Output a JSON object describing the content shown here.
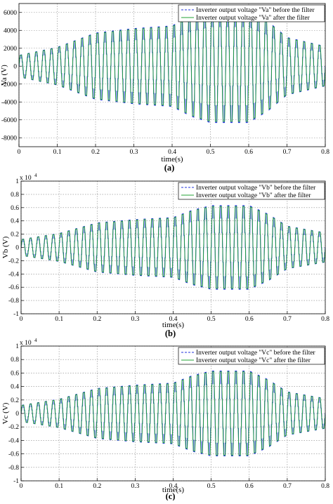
{
  "chart_data": [
    {
      "panel_label": "(a)",
      "type": "line",
      "ylabel": "Va (V)",
      "xlabel": "time(s)",
      "exponent_label": "",
      "xlim": [
        0,
        0.8
      ],
      "ylim": [
        -9000,
        7000
      ],
      "xticks": [
        0,
        0.1,
        0.2,
        0.3,
        0.4,
        0.5,
        0.6,
        0.7,
        0.8
      ],
      "xtick_labels": [
        "0",
        "0.1",
        "0.2",
        "0.3",
        "0.4",
        "0.5",
        "0.6",
        "0.7",
        "0.8"
      ],
      "yticks": [
        -8000,
        -6000,
        -4000,
        -2000,
        0,
        2000,
        4000,
        6000
      ],
      "ytick_labels": [
        "-8000",
        "-6000",
        "-4000",
        "-2000",
        "0",
        "2000",
        "4000",
        "6000"
      ],
      "grid": true,
      "legend_position": "top-right",
      "waveform": {
        "frequency_hz": 50,
        "envelope_t": [
          0,
          0.1,
          0.2,
          0.3,
          0.4,
          0.45,
          0.5,
          0.55,
          0.6,
          0.65,
          0.7,
          0.8
        ],
        "envelope_amplitude": [
          1200,
          2100,
          3700,
          4200,
          4500,
          5600,
          6300,
          6300,
          6300,
          5000,
          3200,
          2200
        ]
      },
      "series": [
        {
          "name": "Inverter output voltage \"Va\" before the filter",
          "color": "#2233dd",
          "style": "dashed"
        },
        {
          "name": "Inverter output voltage \"Va\" after the filter",
          "color": "#23a335",
          "style": "solid"
        }
      ]
    },
    {
      "panel_label": "(b)",
      "type": "line",
      "ylabel": "Vb (V)",
      "xlabel": "time(s)",
      "exponent_label": "x 10",
      "exponent_power": "4",
      "xlim": [
        0,
        0.8
      ],
      "ylim": [
        -1,
        1
      ],
      "xticks": [
        0,
        0.1,
        0.2,
        0.3,
        0.4,
        0.5,
        0.6,
        0.7,
        0.8
      ],
      "xtick_labels": [
        "0",
        "0.1",
        "0.2",
        "0.3",
        "0.4",
        "0.5",
        "0.6",
        "0.7",
        "0.8"
      ],
      "yticks": [
        -1,
        -0.8,
        -0.6,
        -0.4,
        -0.2,
        0,
        0.2,
        0.4,
        0.6,
        0.8,
        1
      ],
      "ytick_labels": [
        "-1",
        "-0.8",
        "-0.6",
        "-0.4",
        "-0.2",
        "0",
        "0.2",
        "0.4",
        "0.6",
        "0.8",
        "1"
      ],
      "grid": true,
      "legend_position": "top-right",
      "waveform": {
        "frequency_hz": 50,
        "envelope_t": [
          0,
          0.1,
          0.2,
          0.3,
          0.4,
          0.45,
          0.5,
          0.55,
          0.6,
          0.65,
          0.7,
          0.8
        ],
        "envelope_amplitude": [
          0.12,
          0.21,
          0.37,
          0.42,
          0.45,
          0.56,
          0.63,
          0.63,
          0.63,
          0.5,
          0.32,
          0.22
        ]
      },
      "series": [
        {
          "name": "Inverter output voltage \"Vb\" before the filter",
          "color": "#2233dd",
          "style": "dashed"
        },
        {
          "name": "Inverter output voltage \"Vb\" after the filter",
          "color": "#23a335",
          "style": "solid"
        }
      ]
    },
    {
      "panel_label": "(c)",
      "type": "line",
      "ylabel": "Vc (V)",
      "xlabel": "time(s)",
      "exponent_label": "x 10",
      "exponent_power": "4",
      "xlim": [
        0,
        0.8
      ],
      "ylim": [
        -1,
        1
      ],
      "xticks": [
        0,
        0.1,
        0.2,
        0.3,
        0.4,
        0.5,
        0.6,
        0.7,
        0.8
      ],
      "xtick_labels": [
        "0",
        "0.1",
        "0.2",
        "0.3",
        "0.4",
        "0.5",
        "0.6",
        "0.7",
        "0.8"
      ],
      "yticks": [
        -1,
        -0.8,
        -0.6,
        -0.4,
        -0.2,
        0,
        0.2,
        0.4,
        0.6,
        0.8,
        1
      ],
      "ytick_labels": [
        "-1",
        "-0.8",
        "-0.6",
        "-0.4",
        "-0.2",
        "0",
        "0.2",
        "0.4",
        "0.6",
        "0.8",
        "1"
      ],
      "grid": true,
      "legend_position": "top-right",
      "waveform": {
        "frequency_hz": 50,
        "envelope_t": [
          0,
          0.1,
          0.2,
          0.3,
          0.4,
          0.45,
          0.5,
          0.55,
          0.6,
          0.65,
          0.7,
          0.8
        ],
        "envelope_amplitude": [
          0.12,
          0.21,
          0.37,
          0.42,
          0.45,
          0.56,
          0.63,
          0.63,
          0.63,
          0.5,
          0.32,
          0.22
        ]
      },
      "series": [
        {
          "name": "Inverter output voltage \"Vc\" before the filter",
          "color": "#2233dd",
          "style": "dashed"
        },
        {
          "name": "Inverter output voltage \"Vc\" after the filter",
          "color": "#23a335",
          "style": "solid"
        }
      ]
    }
  ]
}
